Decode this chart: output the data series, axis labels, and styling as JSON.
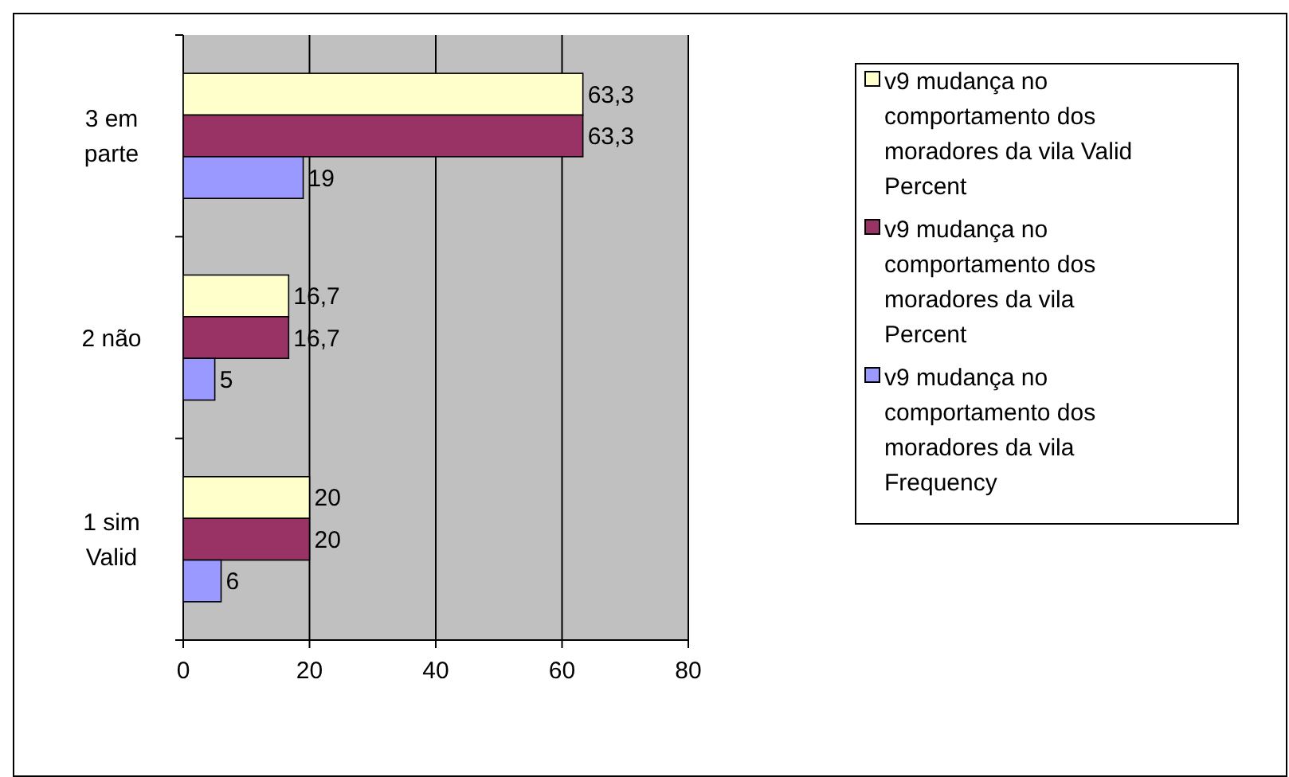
{
  "chart_data": {
    "type": "bar",
    "orientation": "horizontal",
    "categories": [
      "3 em parte",
      "2 não",
      "1 sim Valid"
    ],
    "series": [
      {
        "name": "v9 mudança no comportamento dos moradores da vila Valid Percent",
        "color": "#ffffcc",
        "values": [
          63.3,
          16.7,
          20
        ],
        "value_labels": [
          "63,3",
          "16,7",
          "20"
        ]
      },
      {
        "name": "v9 mudança no comportamento dos moradores da vila Percent",
        "color": "#993366",
        "values": [
          63.3,
          16.7,
          20
        ],
        "value_labels": [
          "63,3",
          "16,7",
          "20"
        ]
      },
      {
        "name": "v9 mudança no comportamento dos moradores da vila Frequency",
        "color": "#9999ff",
        "values": [
          19,
          5,
          6
        ],
        "value_labels": [
          "19",
          "5",
          "6"
        ]
      }
    ],
    "xlim": [
      0,
      80
    ],
    "xticks": [
      0,
      20,
      40,
      60,
      80
    ],
    "grid": "x",
    "legend": "right"
  }
}
